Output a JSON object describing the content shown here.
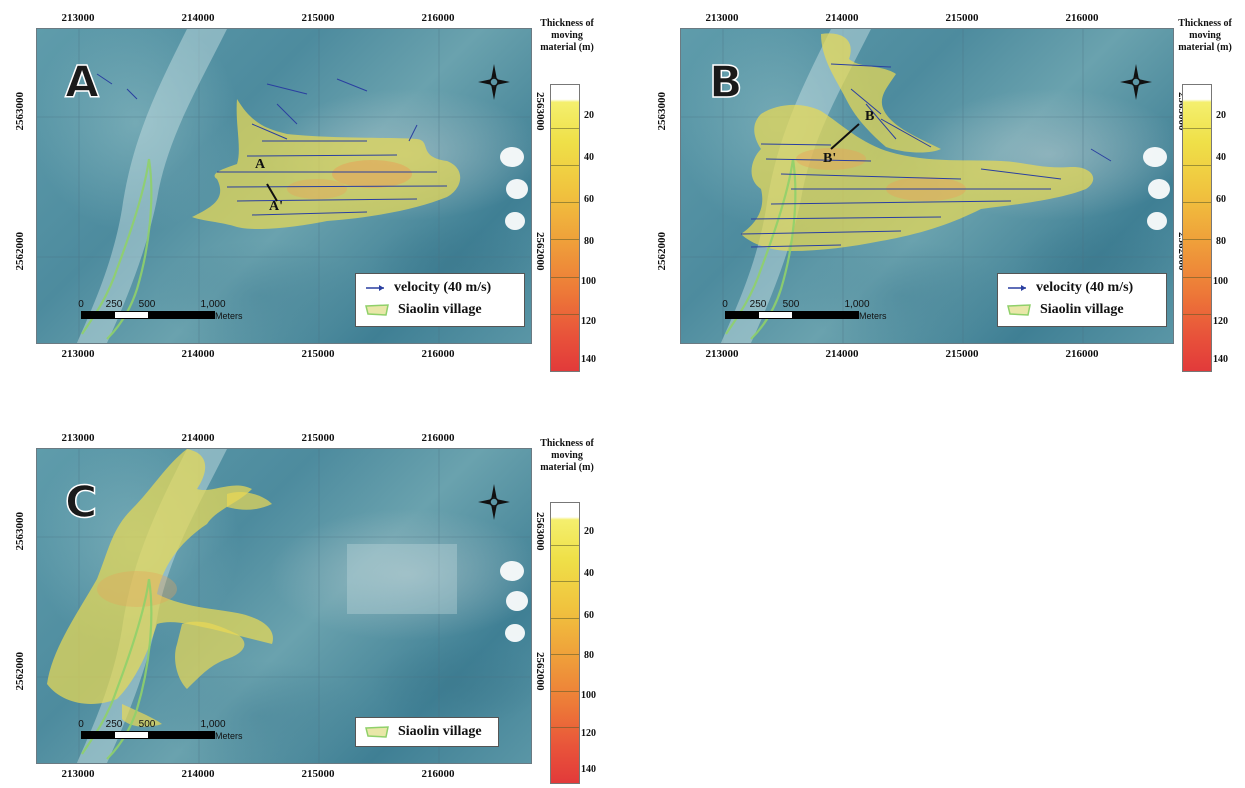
{
  "panels": [
    {
      "letter": "A",
      "x_ticks": [
        "213000",
        "214000",
        "215000",
        "216000"
      ],
      "y_ticks": [
        "2563000",
        "2562000"
      ],
      "legend": {
        "velocity": "velocity (40 m/s)",
        "village": "Siaolin village"
      },
      "section": {
        "start": "A",
        "end": "A'"
      },
      "scale": {
        "labels": [
          "0",
          "250",
          "500",
          "1,000"
        ],
        "units": "Meters"
      },
      "colorbar": {
        "title": "Thickness of moving material (m)",
        "labels": [
          "20",
          "40",
          "60",
          "80",
          "100",
          "120",
          "140"
        ]
      }
    },
    {
      "letter": "B",
      "x_ticks": [
        "213000",
        "214000",
        "215000",
        "216000"
      ],
      "y_ticks": [
        "2563000",
        "2562000"
      ],
      "legend": {
        "velocity": "velocity (40 m/s)",
        "village": "Siaolin village"
      },
      "section": {
        "start": "B",
        "end": "B'"
      },
      "scale": {
        "labels": [
          "0",
          "250",
          "500",
          "1,000"
        ],
        "units": "Meters"
      },
      "colorbar": {
        "title": "Thickness of moving material (m)",
        "labels": [
          "20",
          "40",
          "60",
          "80",
          "100",
          "120",
          "140"
        ]
      }
    },
    {
      "letter": "C",
      "x_ticks": [
        "213000",
        "214000",
        "215000",
        "216000"
      ],
      "y_ticks": [
        "2563000",
        "2562000"
      ],
      "legend": {
        "village": "Siaolin village"
      },
      "scale": {
        "labels": [
          "0",
          "250",
          "500",
          "1,000"
        ],
        "units": "Meters"
      },
      "colorbar": {
        "title": "Thickness of moving material (m)",
        "labels": [
          "20",
          "40",
          "60",
          "80",
          "100",
          "120",
          "140"
        ]
      }
    }
  ],
  "colors": {
    "debris": "#e9d955",
    "debris_core": "#e8a25a",
    "village_outline": "#8fd06a",
    "velocity_arrow": "#2a3fa0",
    "map_base": "#5a96a6"
  }
}
